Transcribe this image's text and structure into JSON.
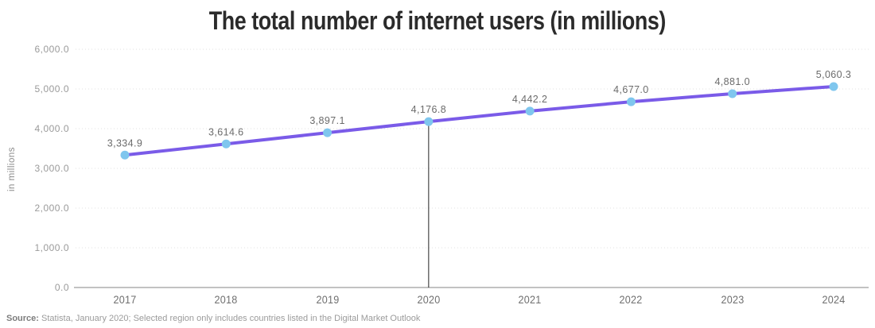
{
  "source": {
    "label": "Source:",
    "text": " Statista, January 2020; Selected region only includes countries listed in the Digital Market Outlook"
  },
  "colors": {
    "line": "#7A5BE8",
    "marker": "#7FC6EE",
    "grid": "#E0E0E0",
    "axis": "#9E9E9E",
    "annotation_line": "#222222"
  },
  "chart_data": {
    "type": "line",
    "title": "The total number of internet users (in millions)",
    "xlabel": "",
    "ylabel": "in millions",
    "categories": [
      "2017",
      "2018",
      "2019",
      "2020",
      "2021",
      "2022",
      "2023",
      "2024"
    ],
    "values": [
      3334.9,
      3614.6,
      3897.1,
      4176.8,
      4442.2,
      4677.0,
      4881.0,
      5060.3
    ],
    "value_labels": [
      "3,334.9",
      "3,614.6",
      "3,897.1",
      "4,176.8",
      "4,442.2",
      "4,677.0",
      "4,881.0",
      "5,060.3"
    ],
    "ylim": [
      0,
      6000
    ],
    "y_ticks": [
      0,
      1000,
      2000,
      3000,
      4000,
      5000,
      6000
    ],
    "y_tick_labels": [
      "0.0",
      "1,000.0",
      "2,000.0",
      "3,000.0",
      "4,000.0",
      "5,000.0",
      "6,000.0"
    ],
    "grid": "horizontal-dotted",
    "legend": "none",
    "annotations": [
      {
        "type": "vertical-line",
        "x": "2020"
      }
    ]
  }
}
